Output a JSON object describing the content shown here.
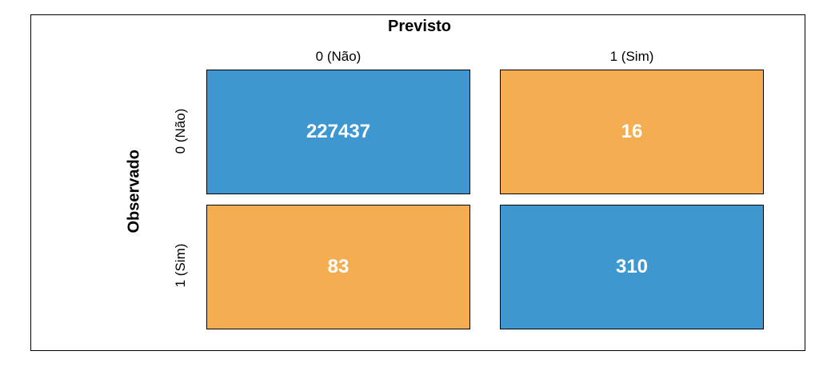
{
  "colors": {
    "diagonal": "#3F97D0",
    "off_diagonal": "#F5AD52",
    "text": "#FFFFFF"
  },
  "chart_data": {
    "type": "heatmap",
    "title": "Previsto",
    "xlabel": "Previsto",
    "ylabel": "Observado",
    "x_categories": [
      "0 (Não)",
      "1 (Sim)"
    ],
    "y_categories": [
      "0 (Não)",
      "1 (Sim)"
    ],
    "values": [
      [
        227437,
        16
      ],
      [
        83,
        310
      ]
    ],
    "value_labels": [
      [
        "227437",
        "16"
      ],
      [
        "83",
        "310"
      ]
    ]
  }
}
